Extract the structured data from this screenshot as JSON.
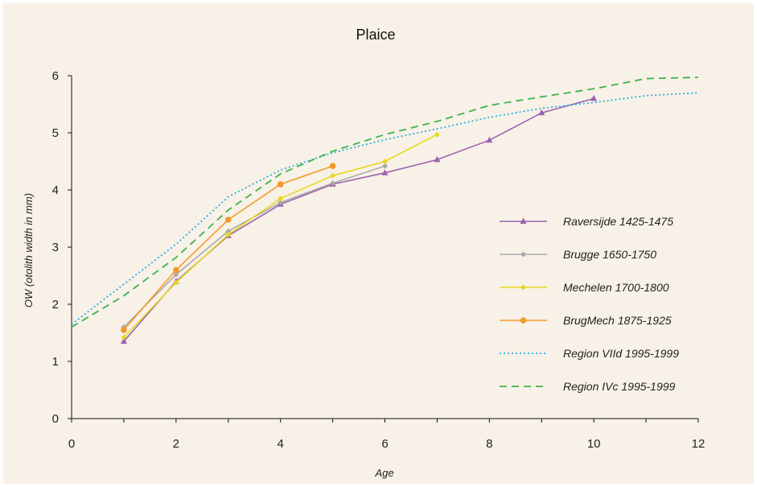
{
  "chart_data": {
    "type": "line",
    "title": "Plaice",
    "xlabel": "Age",
    "ylabel": "OW (otolith width in mm)",
    "xlim": [
      0,
      12
    ],
    "ylim": [
      0,
      6
    ],
    "xticks": [
      0,
      2,
      4,
      6,
      8,
      10,
      12
    ],
    "yticks": [
      0,
      1,
      2,
      3,
      4,
      5,
      6
    ],
    "grid": false,
    "legend_position": "right",
    "series": [
      {
        "name": "Raversijde 1425-1475",
        "color": "#9b63b0",
        "line_style": "solid",
        "marker": "triangle",
        "x": [
          1,
          2,
          3,
          4,
          5,
          6,
          7,
          8,
          9,
          10
        ],
        "y": [
          1.35,
          2.4,
          3.2,
          3.75,
          4.1,
          4.3,
          4.53,
          4.87,
          5.35,
          5.6
        ]
      },
      {
        "name": "Brugge 1650-1750",
        "color": "#aaaaaa",
        "line_style": "solid",
        "marker": "diamond",
        "x": [
          1,
          2,
          3,
          4,
          5,
          6
        ],
        "y": [
          1.6,
          2.52,
          3.28,
          3.78,
          4.12,
          4.42
        ]
      },
      {
        "name": "Mechelen 1700-1800",
        "color": "#e6d820",
        "line_style": "solid",
        "marker": "diamond",
        "x": [
          1,
          2,
          3,
          4,
          5,
          6,
          7
        ],
        "y": [
          1.42,
          2.38,
          3.22,
          3.85,
          4.25,
          4.5,
          4.97
        ]
      },
      {
        "name": "BrugMech 1875-1925",
        "color": "#f39a2b",
        "line_style": "solid",
        "marker": "circle",
        "x": [
          1,
          2,
          3,
          4,
          5
        ],
        "y": [
          1.55,
          2.6,
          3.48,
          4.1,
          4.42
        ]
      },
      {
        "name": "Region VIId 1995-1999",
        "color": "#2ab0e0",
        "line_style": "dotted",
        "marker": "none",
        "x": [
          0,
          1,
          2,
          3,
          4,
          5,
          6,
          7,
          8,
          9,
          10,
          11,
          12
        ],
        "y": [
          1.65,
          2.35,
          3.05,
          3.88,
          4.35,
          4.65,
          4.88,
          5.07,
          5.27,
          5.43,
          5.53,
          5.65,
          5.7
        ]
      },
      {
        "name": "Region IVc 1995-1999",
        "color": "#3cb44b",
        "line_style": "dashed",
        "marker": "none",
        "x": [
          0,
          1,
          2,
          3,
          4,
          5,
          6,
          7,
          8,
          9,
          10,
          11,
          12
        ],
        "y": [
          1.6,
          2.15,
          2.82,
          3.65,
          4.28,
          4.68,
          4.97,
          5.2,
          5.48,
          5.63,
          5.77,
          5.95,
          5.97
        ]
      }
    ]
  }
}
